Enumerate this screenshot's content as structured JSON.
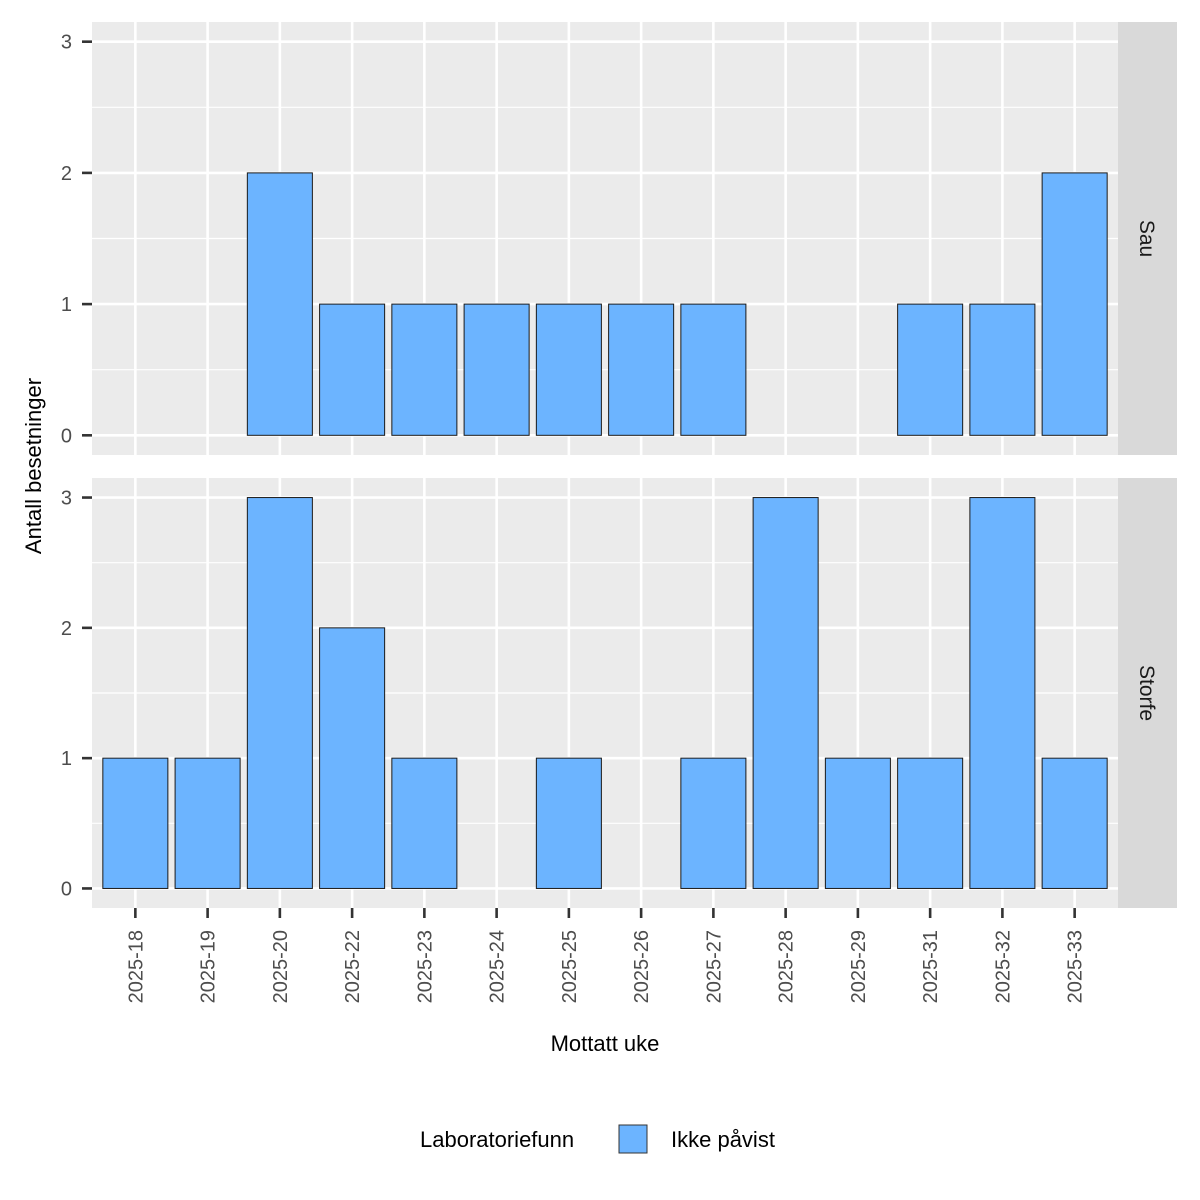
{
  "chart_data": {
    "type": "bar",
    "xlabel": "Mottatt uke",
    "ylabel": "Antall besetninger",
    "categories": [
      "2025-18",
      "2025-19",
      "2025-20",
      "2025-22",
      "2025-23",
      "2025-24",
      "2025-25",
      "2025-26",
      "2025-27",
      "2025-28",
      "2025-29",
      "2025-31",
      "2025-32",
      "2025-33"
    ],
    "ylim": [
      0,
      3
    ],
    "yticks": [
      0,
      1,
      2,
      3
    ],
    "grid": true,
    "legend": {
      "title": "Laboratoriefunn",
      "position": "bottom",
      "entries": [
        {
          "label": "Ikke påvist",
          "color": "#6CB4FF"
        }
      ]
    },
    "panels": [
      {
        "label": "Sau",
        "series": [
          {
            "name": "Ikke påvist",
            "values": [
              0,
              0,
              2,
              1,
              1,
              1,
              1,
              1,
              1,
              0,
              0,
              1,
              1,
              2
            ]
          }
        ]
      },
      {
        "label": "Storfe",
        "series": [
          {
            "name": "Ikke påvist",
            "values": [
              1,
              1,
              3,
              2,
              1,
              0,
              1,
              0,
              1,
              3,
              1,
              1,
              3,
              1
            ]
          }
        ]
      }
    ]
  }
}
